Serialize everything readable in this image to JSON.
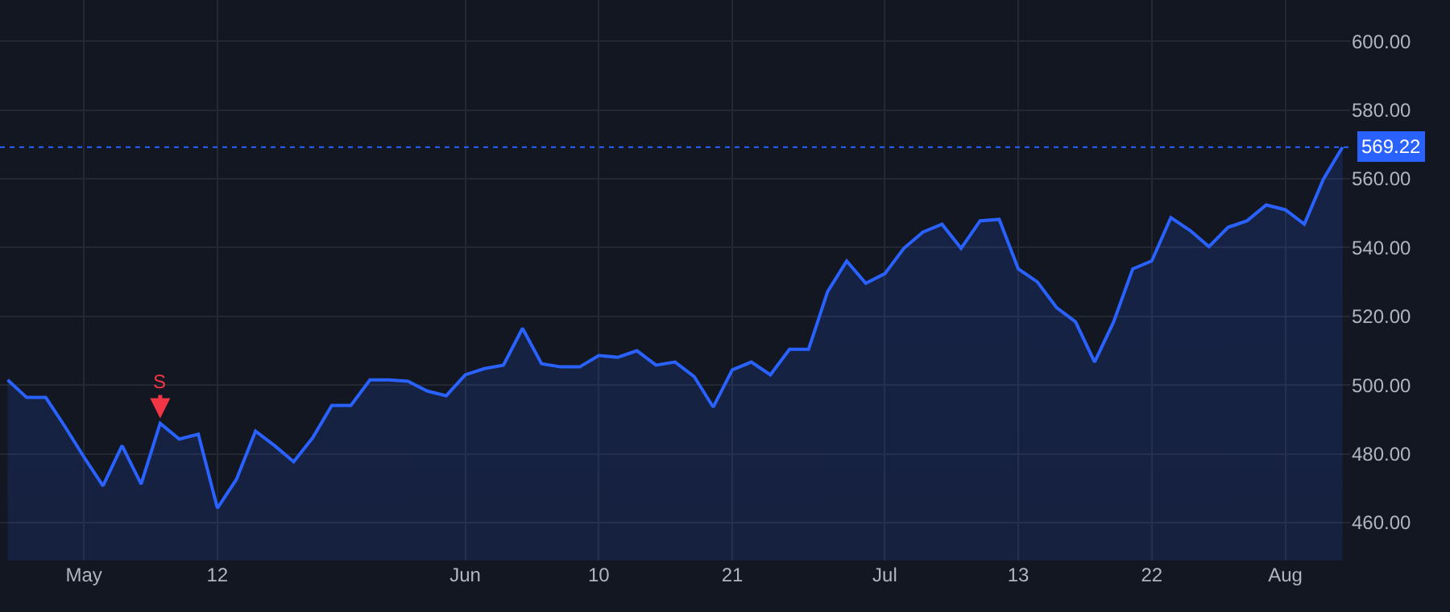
{
  "chart_data": {
    "type": "area",
    "categories": [
      null,
      null,
      null,
      null,
      "May",
      null,
      null,
      null,
      null,
      null,
      null,
      "12",
      null,
      null,
      null,
      null,
      null,
      null,
      null,
      null,
      null,
      null,
      null,
      null,
      "Jun",
      null,
      null,
      null,
      null,
      null,
      null,
      "10",
      null,
      null,
      null,
      null,
      null,
      null,
      "21",
      null,
      null,
      null,
      null,
      null,
      null,
      null,
      "Jul",
      null,
      null,
      null,
      null,
      null,
      null,
      "13",
      null,
      null,
      null,
      null,
      null,
      null,
      "22",
      null,
      null,
      null,
      null,
      null,
      null,
      "Aug",
      null,
      null,
      null
    ],
    "series": [
      {
        "color": "#2962ff",
        "values": [
          501.5,
          496.4,
          496.4,
          488.0,
          479.1,
          470.7,
          482.4,
          471.2,
          488.9,
          484.3,
          485.7,
          464.2,
          472.6,
          486.6,
          482.4,
          477.7,
          484.7,
          494.1,
          494.1,
          501.5,
          501.5,
          501.1,
          498.3,
          496.9,
          503.0,
          504.8,
          505.8,
          516.5,
          506.2,
          505.3,
          505.3,
          508.6,
          508.1,
          510.0,
          505.8,
          506.7,
          502.5,
          493.6,
          504.4,
          506.7,
          503.0,
          510.4,
          510.4,
          527.2,
          536.1,
          529.6,
          532.4,
          539.8,
          544.5,
          546.8,
          539.8,
          547.8,
          548.2,
          533.8,
          530.0,
          522.6,
          518.4,
          506.7,
          518.4,
          533.8,
          536.1,
          548.7,
          545.0,
          540.3,
          545.9,
          547.8,
          552.4,
          551.0,
          546.8,
          559.9,
          569.22
        ]
      }
    ],
    "ylim": [
      449,
      612
    ],
    "yticks": [
      {
        "value": 460,
        "label": "460.00"
      },
      {
        "value": 480,
        "label": "480.00"
      },
      {
        "value": 500,
        "label": "500.00"
      },
      {
        "value": 520,
        "label": "520.00"
      },
      {
        "value": 540,
        "label": "540.00"
      },
      {
        "value": 560,
        "label": "560.00"
      },
      {
        "value": 580,
        "label": "580.00"
      },
      {
        "value": 600,
        "label": "600.00"
      }
    ],
    "ref_lines": [
      {
        "axis": "y",
        "value": 569.22,
        "label": "569.22",
        "color": "#2962ff",
        "line_style": "dotted"
      }
    ],
    "annotations": [
      {
        "text": "S",
        "y": 488.9
      }
    ],
    "grid": true,
    "marker": "none",
    "line_style": "solid"
  }
}
